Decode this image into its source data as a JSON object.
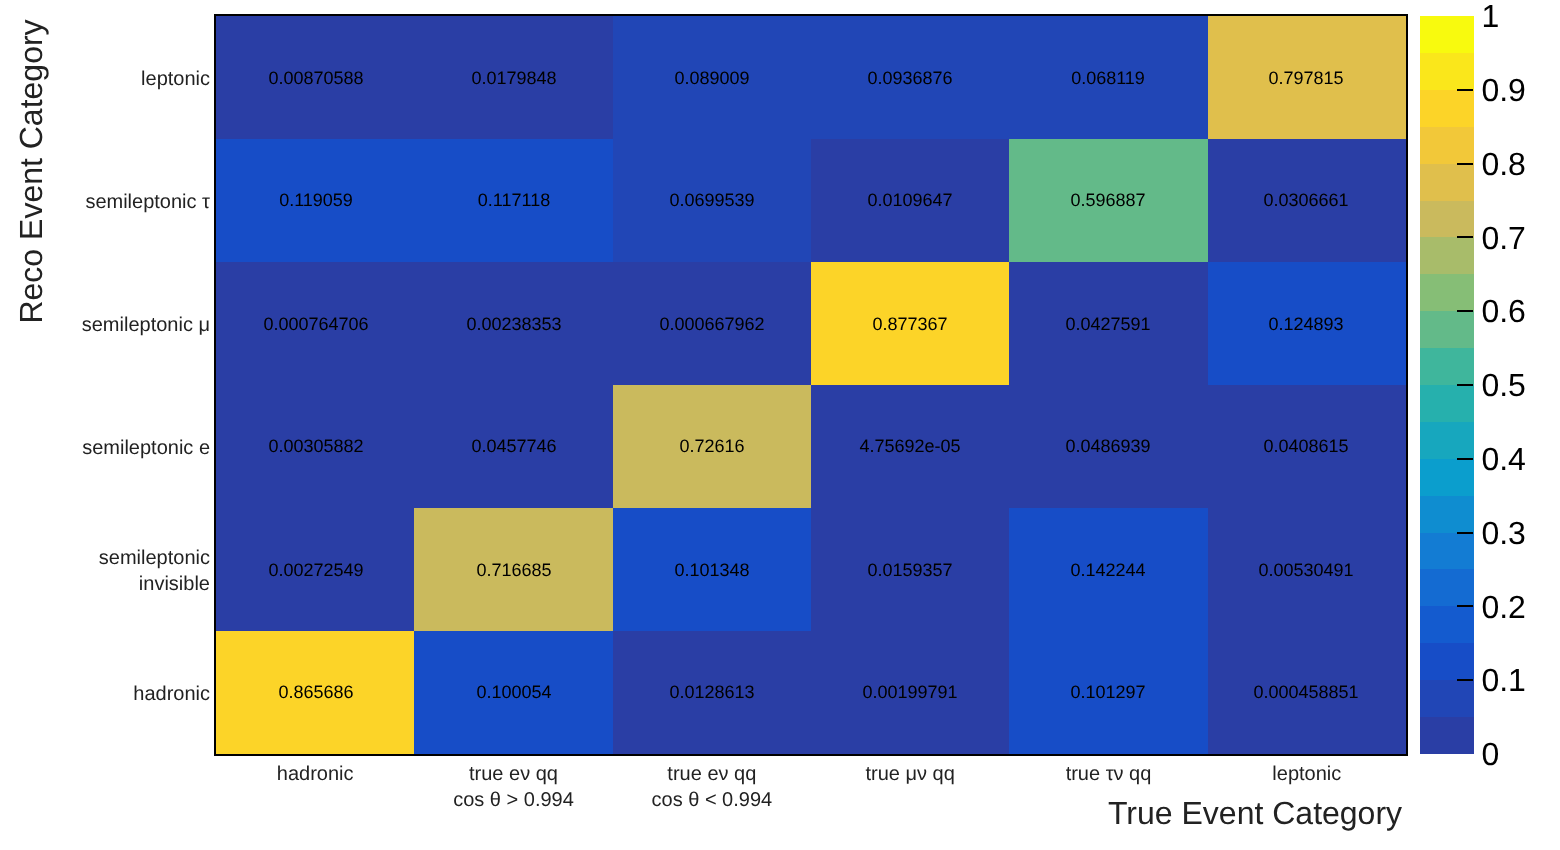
{
  "chart_data": {
    "type": "heatmap",
    "xlabel": "True Event Category",
    "ylabel": "Reco Event Category",
    "categories": [
      "hadronic",
      "true eν qq\ncos θ > 0.994",
      "true eν qq\ncos θ < 0.994",
      "true μν qq",
      "true τν qq",
      "leptonic"
    ],
    "y_categories": [
      "leptonic",
      "semileptonic τ",
      "semileptonic μ",
      "semileptonic e",
      "semileptonic\ninvisible",
      "hadronic"
    ],
    "cells": [
      [
        0.00870588,
        0.0179848,
        0.089009,
        0.0936876,
        0.068119,
        0.797815
      ],
      [
        0.119059,
        0.117118,
        0.0699539,
        0.0109647,
        0.596887,
        0.0306661
      ],
      [
        0.000764706,
        0.00238353,
        0.000667962,
        0.877367,
        0.0427591,
        0.124893
      ],
      [
        0.00305882,
        0.0457746,
        0.72616,
        4.75692e-05,
        0.0486939,
        0.0408615
      ],
      [
        0.00272549,
        0.716685,
        0.101348,
        0.0159357,
        0.142244,
        0.00530491
      ],
      [
        0.865686,
        0.100054,
        0.0128613,
        0.00199791,
        0.101297,
        0.000458851
      ]
    ],
    "clim": [
      0,
      1
    ],
    "cticks": [
      0,
      0.1,
      0.2,
      0.3,
      0.4,
      0.5,
      0.6,
      0.7,
      0.8,
      0.9,
      1
    ],
    "data_labels": true
  }
}
